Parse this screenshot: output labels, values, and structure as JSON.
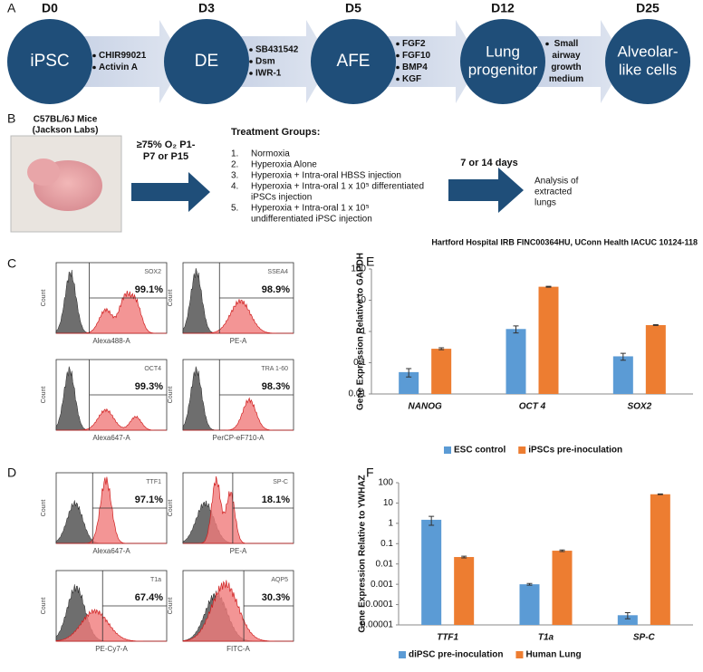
{
  "panel_labels": [
    "A",
    "B",
    "C",
    "D",
    "E",
    "F"
  ],
  "diagram": {
    "days": [
      "D0",
      "D3",
      "D5",
      "D12",
      "D25"
    ],
    "nodes": [
      [
        "iPSC"
      ],
      [
        "DE"
      ],
      [
        "AFE"
      ],
      [
        "Lung",
        "progenitor"
      ],
      [
        "Alveolar-",
        "like cells"
      ]
    ],
    "steps": [
      [
        "CHIR99021",
        "Activin A"
      ],
      [
        "SB431542",
        "Dsm",
        "IWR-1"
      ],
      [
        "FGF2",
        "FGF10",
        "BMP4",
        "KGF"
      ],
      [
        "Small",
        "airway",
        "growth",
        "medium"
      ]
    ]
  },
  "design": {
    "mouse": [
      "C57BL/6J Mice",
      "(Jackson Labs)"
    ],
    "exposure": [
      "≥75% O₂ P1-",
      "P7 or P15"
    ],
    "treatment_title": "Treatment Groups:",
    "groups": [
      {
        "marker": "1.",
        "lines": [
          "Normoxia"
        ]
      },
      {
        "marker": "2.",
        "lines": [
          "Hyperoxia Alone"
        ]
      },
      {
        "marker": "3.",
        "lines": [
          "Hyperoxia + Intra-oral HBSS injection"
        ]
      },
      {
        "marker": "4.",
        "lines": [
          "Hyperoxia + Intra-oral 1 x 10⁵ differentiated",
          "iPSCs injection"
        ]
      },
      {
        "marker": "5.",
        "lines": [
          "Hyperoxia + Intra-oral 1 x 10⁵",
          "undifferentiated iPSC injection"
        ]
      }
    ],
    "duration": "7 or 14 days",
    "analysis": [
      "Analysis of",
      "extracted",
      "lungs"
    ],
    "approval": "Hartford Hospital IRB FINC00364HU, UConn Health IACUC 10124-118"
  },
  "flow": [
    {
      "marker": "SOX2",
      "percent": "99.1%",
      "channel": "Alexa488-A",
      "axis": "Count"
    },
    {
      "marker": "SSEA4",
      "percent": "98.9%",
      "channel": "PE-A",
      "axis": "Count"
    },
    {
      "marker": "OCT4",
      "percent": "99.3%",
      "channel": "Alexa647-A",
      "axis": "Count"
    },
    {
      "marker": "TRA 1-60",
      "percent": "98.3%",
      "channel": "PerCP-eF710-A",
      "axis": "Count"
    },
    {
      "marker": "TTF1",
      "percent": "97.1%",
      "channel": "Alexa647-A",
      "axis": "Count"
    },
    {
      "marker": "SP-C",
      "percent": "18.1%",
      "channel": "PE-A",
      "axis": "Count"
    },
    {
      "marker": "T1a",
      "percent": "67.4%",
      "channel": "PE-Cy7-A",
      "axis": "Count"
    },
    {
      "marker": "AQP5",
      "percent": "30.3%",
      "channel": "FITC-A",
      "axis": "Count"
    }
  ],
  "chart_data": [
    {
      "type": "bar",
      "y_label": "Gene Expression Relative to GAPDH",
      "log_scale": true,
      "categories": [
        "NANOG",
        "OCT 4",
        "SOX2"
      ],
      "series": [
        {
          "name": "ESC control",
          "color": "#5b9bd5",
          "values": [
            0.05,
            1.2,
            0.16
          ],
          "errors": [
            0.015,
            0.3,
            0.04
          ]
        },
        {
          "name": "iPSCs pre-inoculation",
          "color": "#ed7d31",
          "values": [
            0.28,
            27,
            1.6
          ],
          "errors": [
            0.02,
            1,
            0.05
          ]
        }
      ],
      "ylim": [
        0.01,
        100
      ],
      "yticks": [
        0.01,
        0.1,
        1,
        10,
        100
      ],
      "legend": "bottom"
    },
    {
      "type": "bar",
      "y_label": "Gene Expression Relative to YWHAZ",
      "log_scale": true,
      "categories": [
        "TTF1",
        "T1a",
        "SP-C"
      ],
      "series": [
        {
          "name": "diPSC pre-inoculation",
          "color": "#5b9bd5",
          "values": [
            1.5,
            0.001,
            3e-05
          ],
          "errors": [
            0.7,
            0.0001,
            1e-05
          ]
        },
        {
          "name": "Human Lung",
          "color": "#ed7d31",
          "values": [
            0.022,
            0.045,
            27
          ],
          "errors": [
            0.002,
            0.004,
            1
          ]
        }
      ],
      "ylim": [
        1e-05,
        100
      ],
      "yticks": [
        1e-05,
        0.0001,
        0.001,
        0.01,
        0.1,
        1,
        10,
        100
      ],
      "legend": "bottom"
    }
  ]
}
